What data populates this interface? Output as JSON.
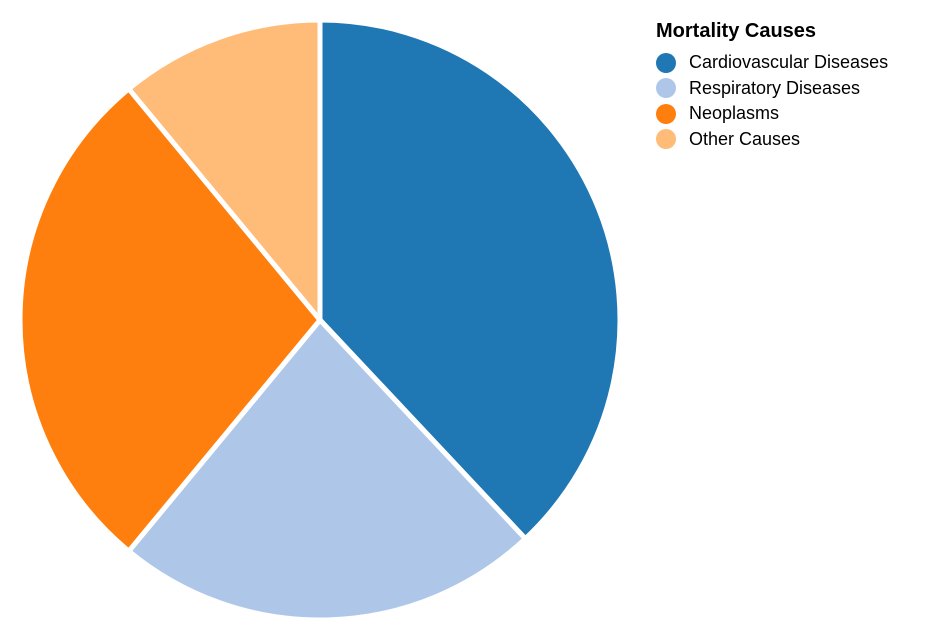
{
  "chart_data": {
    "type": "pie",
    "legend_title": "Mortality Causes",
    "legend_position": "top-right",
    "slices": [
      {
        "label": "Cardiovascular Diseases",
        "value": 38,
        "color": "#1f77b4"
      },
      {
        "label": "Respiratory Diseases",
        "value": 23,
        "color": "#aec7e8"
      },
      {
        "label": "Neoplasms",
        "value": 28,
        "color": "#ff7f0e"
      },
      {
        "label": "Other Causes",
        "value": 11,
        "color": "#ffbb78"
      }
    ]
  }
}
